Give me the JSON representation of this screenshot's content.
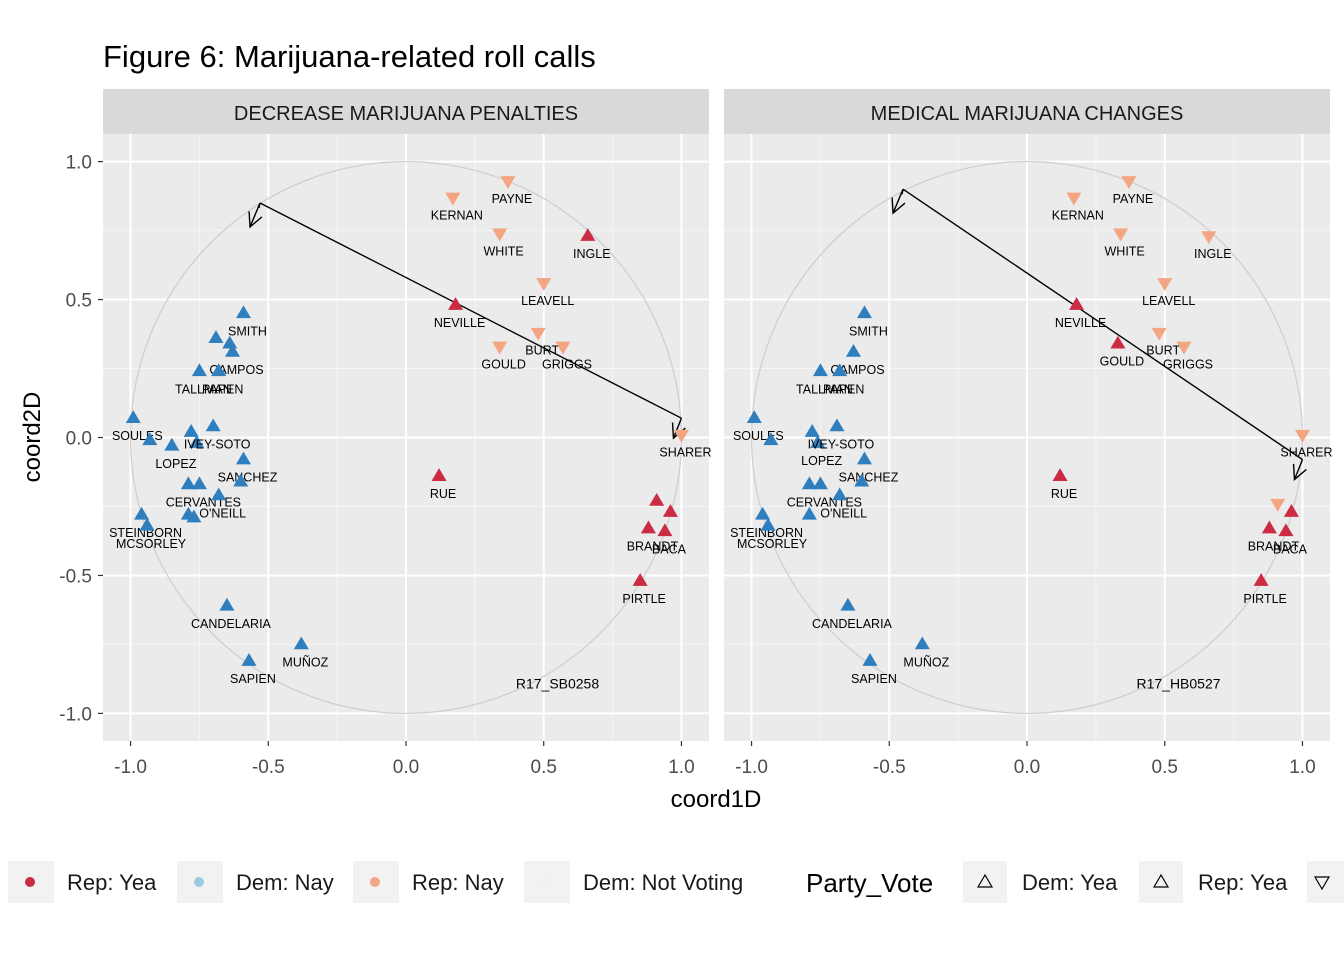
{
  "chart_data": {
    "type": "scatter",
    "title": "Figure 6: Marijuana-related roll calls",
    "xlabel": "coord1D",
    "ylabel": "coord2D",
    "xlim": [
      -1.1,
      1.1
    ],
    "ylim": [
      -1.1,
      1.1
    ],
    "xticks": [
      -1.0,
      -0.5,
      0.0,
      0.5,
      1.0
    ],
    "xtick_labels": [
      "-1.0",
      "-0.5",
      "0.0",
      "0.5",
      "1.0"
    ],
    "yticks": [
      1.0,
      0.5,
      0.0,
      -0.5,
      -1.0
    ],
    "ytick_labels": [
      "1.0",
      "0.5",
      "0.0",
      "-0.5",
      "-1.0"
    ],
    "grid": true,
    "unit_circle": true,
    "colors": {
      "dem_yea": "#2f7fbf",
      "dem_nay": "#9ecae1",
      "rep_yea": "#cb2c44",
      "rep_nay": "#f4a582",
      "dem_not_voting": "#edf0f4"
    },
    "legend": {
      "position": "bottom",
      "color_entries": [
        "Rep: Yea",
        "Dem: Nay",
        "Rep: Nay",
        "Dem: Not Voting"
      ],
      "shape_title": "Party_Vote",
      "shape_entries": [
        "Dem: Yea",
        "Rep: Yea"
      ]
    },
    "panels": [
      {
        "strip": "DECREASE MARIJUANA PENALTIES",
        "rollcall": "R17_SB0258",
        "arrow": {
          "from": [
            -0.53,
            0.85
          ],
          "to": [
            1.0,
            0.07
          ]
        },
        "points": [
          {
            "x": -0.59,
            "y": 0.45,
            "c": "dem_yea",
            "s": "up",
            "label": "SMITH"
          },
          {
            "x": -0.69,
            "y": 0.36,
            "c": "dem_yea",
            "s": "up"
          },
          {
            "x": -0.64,
            "y": 0.34,
            "c": "dem_yea",
            "s": "up"
          },
          {
            "x": -0.63,
            "y": 0.31,
            "c": "dem_yea",
            "s": "up",
            "label": "CAMPOS"
          },
          {
            "x": -0.75,
            "y": 0.24,
            "c": "dem_yea",
            "s": "up",
            "label": "TALLMAN"
          },
          {
            "x": -0.68,
            "y": 0.24,
            "c": "dem_yea",
            "s": "up",
            "label": "PAPEN"
          },
          {
            "x": -0.99,
            "y": 0.07,
            "c": "dem_yea",
            "s": "up",
            "label": "SOULES"
          },
          {
            "x": -0.93,
            "y": -0.01,
            "c": "dem_yea",
            "s": "up"
          },
          {
            "x": -0.78,
            "y": 0.02,
            "c": "dem_yea",
            "s": "up"
          },
          {
            "x": -0.85,
            "y": -0.03,
            "c": "dem_yea",
            "s": "up",
            "label": "LOPEZ"
          },
          {
            "x": -0.76,
            "y": -0.02,
            "c": "dem_yea",
            "s": "up"
          },
          {
            "x": -0.7,
            "y": 0.04,
            "c": "dem_yea",
            "s": "up",
            "label": "IVEY-SOTO"
          },
          {
            "x": -0.59,
            "y": -0.08,
            "c": "dem_yea",
            "s": "up",
            "label": "SANCHEZ"
          },
          {
            "x": -0.79,
            "y": -0.17,
            "c": "dem_yea",
            "s": "up"
          },
          {
            "x": -0.75,
            "y": -0.17,
            "c": "dem_yea",
            "s": "up",
            "label": "CERVANTES"
          },
          {
            "x": -0.6,
            "y": -0.16,
            "c": "dem_yea",
            "s": "up"
          },
          {
            "x": -0.68,
            "y": -0.21,
            "c": "dem_yea",
            "s": "up",
            "label": "O'NEILL"
          },
          {
            "x": -0.79,
            "y": -0.28,
            "c": "dem_yea",
            "s": "up"
          },
          {
            "x": -0.77,
            "y": -0.29,
            "c": "dem_yea",
            "s": "up"
          },
          {
            "x": -0.96,
            "y": -0.28,
            "c": "dem_yea",
            "s": "up",
            "label": "STEINBORN"
          },
          {
            "x": -0.94,
            "y": -0.32,
            "c": "dem_yea",
            "s": "up",
            "label": "MCSORLEY"
          },
          {
            "x": -0.65,
            "y": -0.61,
            "c": "dem_yea",
            "s": "up",
            "label": "CANDELARIA"
          },
          {
            "x": -0.38,
            "y": -0.75,
            "c": "dem_yea",
            "s": "up",
            "label": "MUÑOZ"
          },
          {
            "x": -0.57,
            "y": -0.81,
            "c": "dem_yea",
            "s": "up",
            "label": "SAPIEN"
          },
          {
            "x": 0.37,
            "y": 0.93,
            "c": "rep_nay",
            "s": "down",
            "label": "PAYNE"
          },
          {
            "x": 0.17,
            "y": 0.87,
            "c": "rep_nay",
            "s": "down",
            "label": "KERNAN"
          },
          {
            "x": 0.34,
            "y": 0.74,
            "c": "rep_nay",
            "s": "down",
            "label": "WHITE"
          },
          {
            "x": 0.66,
            "y": 0.73,
            "c": "rep_yea",
            "s": "up",
            "label": "INGLE"
          },
          {
            "x": 0.5,
            "y": 0.56,
            "c": "rep_nay",
            "s": "down",
            "label": "LEAVELL"
          },
          {
            "x": 0.18,
            "y": 0.48,
            "c": "rep_yea",
            "s": "up",
            "label": "NEVILLE"
          },
          {
            "x": 0.48,
            "y": 0.38,
            "c": "rep_nay",
            "s": "down",
            "label": "BURT"
          },
          {
            "x": 0.34,
            "y": 0.33,
            "c": "rep_nay",
            "s": "down",
            "label": "GOULD"
          },
          {
            "x": 0.57,
            "y": 0.33,
            "c": "rep_nay",
            "s": "down",
            "label": "GRIGGS"
          },
          {
            "x": 1.0,
            "y": 0.01,
            "c": "rep_nay",
            "s": "down",
            "label": "SHARER"
          },
          {
            "x": 0.12,
            "y": -0.14,
            "c": "rep_yea",
            "s": "up",
            "label": "RUE"
          },
          {
            "x": 0.91,
            "y": -0.23,
            "c": "rep_yea",
            "s": "up"
          },
          {
            "x": 0.96,
            "y": -0.27,
            "c": "rep_yea",
            "s": "up"
          },
          {
            "x": 0.88,
            "y": -0.33,
            "c": "rep_yea",
            "s": "up",
            "label": "BRANDT"
          },
          {
            "x": 0.94,
            "y": -0.34,
            "c": "rep_yea",
            "s": "up",
            "label": "BACA"
          },
          {
            "x": 0.85,
            "y": -0.52,
            "c": "rep_yea",
            "s": "up",
            "label": "PIRTLE"
          }
        ]
      },
      {
        "strip": "MEDICAL MARIJUANA CHANGES",
        "rollcall": "R17_HB0527",
        "arrow": {
          "from": [
            -0.45,
            0.9
          ],
          "to": [
            1.0,
            -0.08
          ]
        },
        "points": [
          {
            "x": -0.59,
            "y": 0.45,
            "c": "dem_yea",
            "s": "up",
            "label": "SMITH"
          },
          {
            "x": -0.63,
            "y": 0.31,
            "c": "dem_yea",
            "s": "up",
            "label": "CAMPOS"
          },
          {
            "x": -0.75,
            "y": 0.24,
            "c": "dem_yea",
            "s": "up",
            "label": "TALLMAN"
          },
          {
            "x": -0.68,
            "y": 0.24,
            "c": "dem_yea",
            "s": "up",
            "label": "PAPEN"
          },
          {
            "x": -0.99,
            "y": 0.07,
            "c": "dem_yea",
            "s": "up",
            "label": "SOULES"
          },
          {
            "x": -0.93,
            "y": -0.01,
            "c": "dem_yea",
            "s": "up"
          },
          {
            "x": -0.78,
            "y": 0.02,
            "c": "dem_yea",
            "s": "up"
          },
          {
            "x": -0.76,
            "y": -0.02,
            "c": "dem_yea",
            "s": "up",
            "label": "LOPEZ"
          },
          {
            "x": -0.69,
            "y": 0.04,
            "c": "dem_yea",
            "s": "up",
            "label": "IVEY-SOTO"
          },
          {
            "x": -0.59,
            "y": -0.08,
            "c": "dem_yea",
            "s": "up",
            "label": "SANCHEZ"
          },
          {
            "x": -0.79,
            "y": -0.17,
            "c": "dem_yea",
            "s": "up"
          },
          {
            "x": -0.75,
            "y": -0.17,
            "c": "dem_yea",
            "s": "up",
            "label": "CERVANTES"
          },
          {
            "x": -0.6,
            "y": -0.16,
            "c": "dem_yea",
            "s": "up"
          },
          {
            "x": -0.68,
            "y": -0.21,
            "c": "dem_yea",
            "s": "up",
            "label": "O'NEILL"
          },
          {
            "x": -0.79,
            "y": -0.28,
            "c": "dem_yea",
            "s": "up"
          },
          {
            "x": -0.96,
            "y": -0.28,
            "c": "dem_yea",
            "s": "up",
            "label": "STEINBORN"
          },
          {
            "x": -0.94,
            "y": -0.32,
            "c": "dem_yea",
            "s": "up",
            "label": "MCSORLEY"
          },
          {
            "x": -0.65,
            "y": -0.61,
            "c": "dem_yea",
            "s": "up",
            "label": "CANDELARIA"
          },
          {
            "x": -0.38,
            "y": -0.75,
            "c": "dem_yea",
            "s": "up",
            "label": "MUÑOZ"
          },
          {
            "x": -0.57,
            "y": -0.81,
            "c": "dem_yea",
            "s": "up",
            "label": "SAPIEN"
          },
          {
            "x": 0.37,
            "y": 0.93,
            "c": "rep_nay",
            "s": "down",
            "label": "PAYNE"
          },
          {
            "x": 0.17,
            "y": 0.87,
            "c": "rep_nay",
            "s": "down",
            "label": "KERNAN"
          },
          {
            "x": 0.34,
            "y": 0.74,
            "c": "rep_nay",
            "s": "down",
            "label": "WHITE"
          },
          {
            "x": 0.66,
            "y": 0.73,
            "c": "rep_nay",
            "s": "down",
            "label": "INGLE"
          },
          {
            "x": 0.5,
            "y": 0.56,
            "c": "rep_nay",
            "s": "down",
            "label": "LEAVELL"
          },
          {
            "x": 0.18,
            "y": 0.48,
            "c": "rep_yea",
            "s": "up",
            "label": "NEVILLE"
          },
          {
            "x": 0.48,
            "y": 0.38,
            "c": "rep_nay",
            "s": "down",
            "label": "BURT"
          },
          {
            "x": 0.33,
            "y": 0.34,
            "c": "rep_yea",
            "s": "up",
            "label": "GOULD"
          },
          {
            "x": 0.57,
            "y": 0.33,
            "c": "rep_nay",
            "s": "down",
            "label": "GRIGGS"
          },
          {
            "x": 1.0,
            "y": 0.01,
            "c": "rep_nay",
            "s": "down",
            "label": "SHARER"
          },
          {
            "x": 0.12,
            "y": -0.14,
            "c": "rep_yea",
            "s": "up",
            "label": "RUE"
          },
          {
            "x": 0.91,
            "y": -0.24,
            "c": "rep_nay",
            "s": "down"
          },
          {
            "x": 0.96,
            "y": -0.27,
            "c": "rep_yea",
            "s": "up"
          },
          {
            "x": 0.88,
            "y": -0.33,
            "c": "rep_yea",
            "s": "up",
            "label": "BRANDT"
          },
          {
            "x": 0.94,
            "y": -0.34,
            "c": "rep_yea",
            "s": "up",
            "label": "BACA"
          },
          {
            "x": 0.85,
            "y": -0.52,
            "c": "rep_yea",
            "s": "up",
            "label": "PIRTLE"
          }
        ]
      }
    ]
  }
}
